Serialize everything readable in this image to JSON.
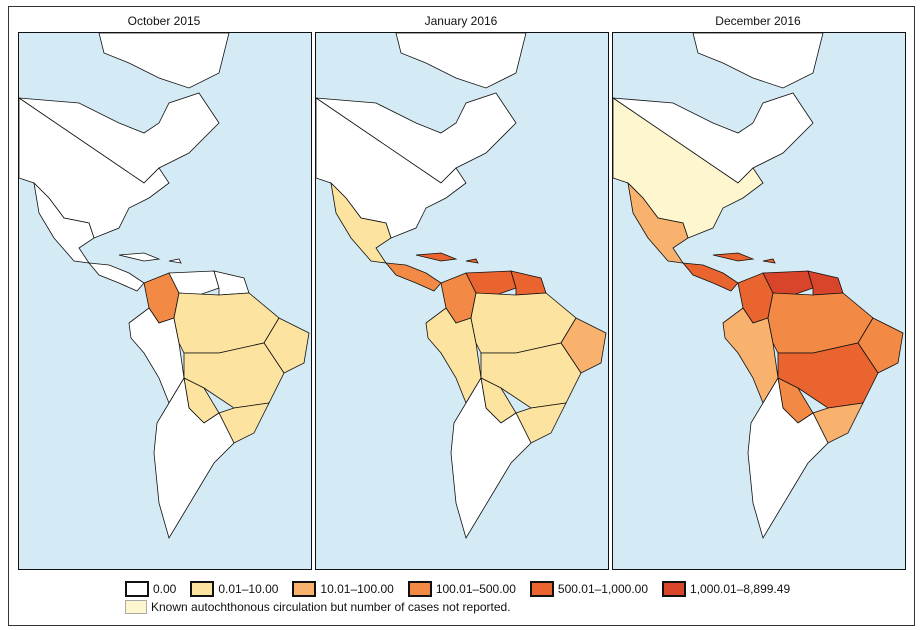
{
  "panels": [
    {
      "title": "October 2015",
      "regions": {
        "mexico": 0,
        "central_america": 0,
        "caribbean": 0,
        "usa": 0,
        "colombia": 3,
        "venezuela": 0,
        "guianas": 0,
        "brazil_north": 1,
        "brazil_central": 1,
        "brazil_east": 1,
        "brazil_south": 1,
        "andes": 0,
        "southern_cone": 0,
        "paraguay": 1
      }
    },
    {
      "title": "January 2016",
      "regions": {
        "mexico": 1,
        "central_america": 3,
        "caribbean": 4,
        "usa": 0,
        "colombia": 3,
        "venezuela": 4,
        "guianas": 4,
        "brazil_north": 1,
        "brazil_central": 1,
        "brazil_east": 2,
        "brazil_south": 1,
        "andes": 1,
        "southern_cone": 0,
        "paraguay": 1
      }
    },
    {
      "title": "December 2016",
      "regions": {
        "mexico": 2,
        "central_america": 4,
        "caribbean": 4,
        "usa": 6,
        "colombia": 4,
        "venezuela": 5,
        "guianas": 5,
        "brazil_north": 3,
        "brazil_central": 4,
        "brazil_east": 3,
        "brazil_south": 2,
        "andes": 2,
        "southern_cone": 0,
        "paraguay": 3
      }
    }
  ],
  "legend": {
    "items": [
      {
        "label": "0.00",
        "color": "#ffffff"
      },
      {
        "label": "0.01–10.00",
        "color": "#fde3a0"
      },
      {
        "label": "10.01–100.00",
        "color": "#f9b26e"
      },
      {
        "label": "100.01–500.00",
        "color": "#f28a45"
      },
      {
        "label": "500.01–1,000.00",
        "color": "#e9642e"
      },
      {
        "label": "1,000.01–8,899.49",
        "color": "#d9452a"
      }
    ],
    "known": {
      "label": "Known autochthonous circulation but number of cases not reported.",
      "color": "#fdf6cf"
    }
  },
  "colors": {
    "ocean": "#d4eaf4",
    "land": "#ffffff",
    "border": "#111111"
  }
}
